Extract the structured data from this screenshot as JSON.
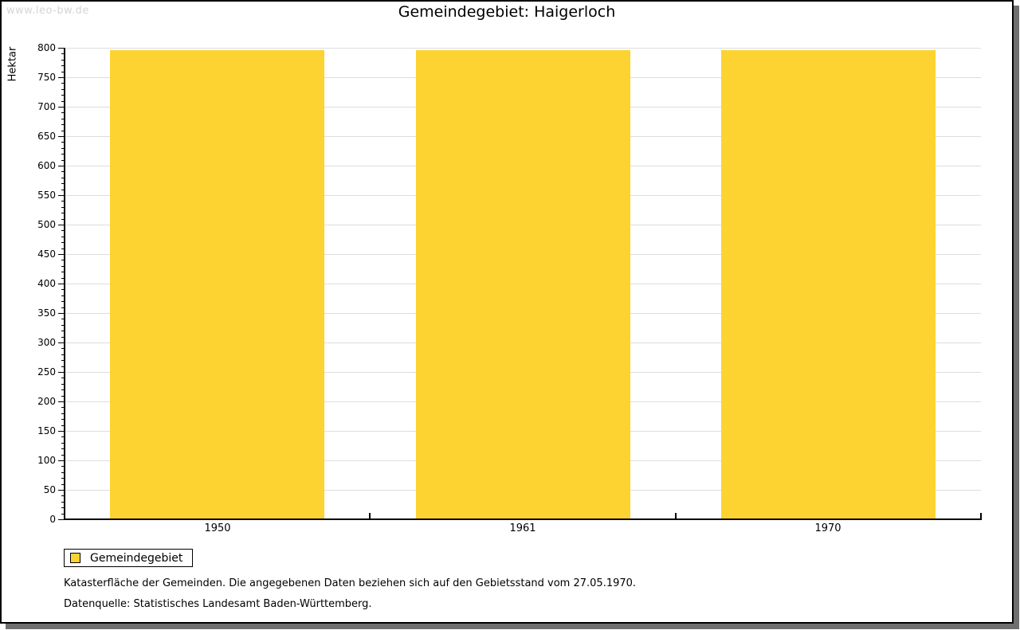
{
  "watermark": {
    "text": "www.leo-bw.de"
  },
  "header": {
    "title": "Gemeindegebiet: Haigerloch"
  },
  "axis": {
    "ylabel": "Hektar"
  },
  "legend": {
    "items": [
      {
        "label": "Gemeindegebiet",
        "color": "#FCD330"
      }
    ]
  },
  "footnotes": {
    "line1": "Katasterfläche der Gemeinden. Die angegebenen Daten beziehen sich auf den Gebietsstand vom 27.05.1970.",
    "line2": "Datenquelle: Statistisches Landesamt Baden-Württemberg."
  },
  "colors": {
    "bar": "#FCD330",
    "grid": "#DDDDDD",
    "axis": "#000000",
    "frame_shadow": "#6F6F6F",
    "watermark_text": "#D5D5D5"
  },
  "chart_data": {
    "type": "bar",
    "title": "Gemeindegebiet: Haigerloch",
    "categories": [
      "1950",
      "1961",
      "1970"
    ],
    "series": [
      {
        "name": "Gemeindegebiet",
        "values": [
          796,
          796,
          796
        ]
      }
    ],
    "xlabel": "",
    "ylabel": "Hektar",
    "ylim": [
      0,
      800
    ],
    "ytick_major": 50,
    "ytick_minor": 10,
    "grid": true,
    "legend_position": "bottom-left"
  }
}
